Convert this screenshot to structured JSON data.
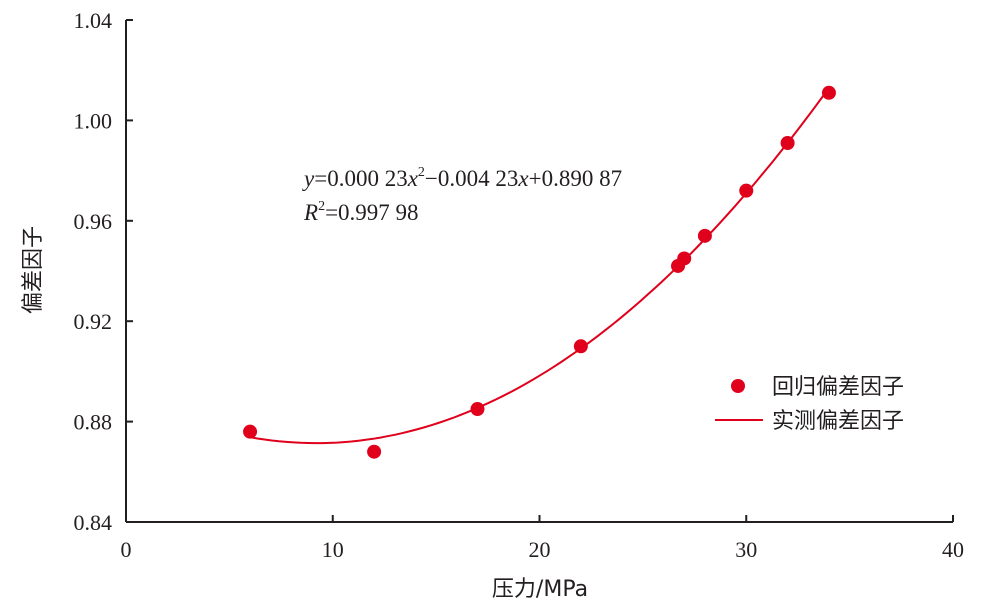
{
  "chart_data": {
    "type": "scatter",
    "title": "",
    "xlabel": "压力/MPa",
    "ylabel": "偏差因子",
    "xlim": [
      0,
      40
    ],
    "ylim": [
      0.84,
      1.04
    ],
    "xticks": [
      0,
      10,
      20,
      30,
      40
    ],
    "xtick_labels": [
      "0",
      "10",
      "20",
      "30",
      "40"
    ],
    "yticks": [
      0.84,
      0.88,
      0.92,
      0.96,
      1.0,
      1.04
    ],
    "ytick_labels": [
      "0.84",
      "0.88",
      "0.92",
      "0.96",
      "1.00",
      "1.04"
    ],
    "grid": false,
    "legend_position": "right",
    "series": [
      {
        "name": "回归偏差因子",
        "kind": "points",
        "color": "#e0001b",
        "x": [
          6,
          12,
          17,
          22,
          26.7,
          27,
          28,
          30,
          32,
          34
        ],
        "y": [
          0.876,
          0.868,
          0.885,
          0.91,
          0.942,
          0.945,
          0.954,
          0.972,
          0.991,
          1.011
        ]
      },
      {
        "name": "实测偏差因子",
        "kind": "fitted-line",
        "color": "#e0001b",
        "coefficients": {
          "a": 0.00023,
          "b": -0.00423,
          "c": 0.89087
        },
        "x_range": [
          6,
          34
        ]
      }
    ],
    "annotation": {
      "equation_parts": [
        "y",
        "=0.000 23",
        "x",
        "2",
        "−0.004 23",
        "x",
        "+0.890 87"
      ],
      "r2_parts": [
        "R",
        "2",
        "=0.997 98"
      ]
    }
  }
}
